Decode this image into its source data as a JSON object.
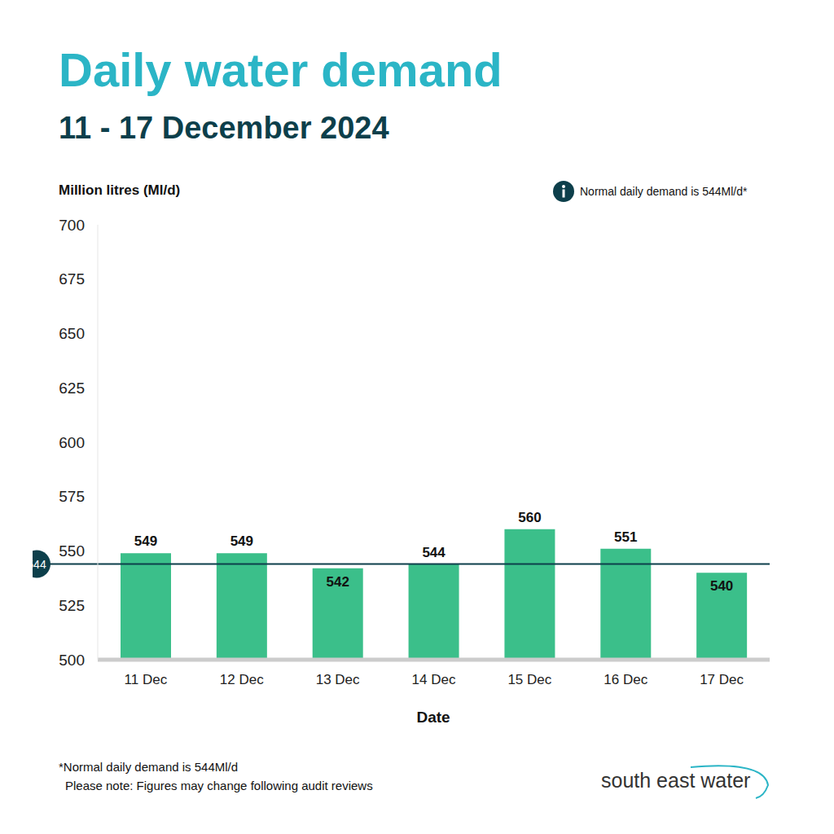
{
  "chart_data": {
    "type": "bar",
    "title": "Daily water demand",
    "subtitle": "11 - 17 December 2024",
    "y_label": "Million litres (Ml/d)",
    "x_label": "Date",
    "note": "Normal daily demand is 544Ml/d*",
    "footnotes": [
      "*Normal daily demand is 544Ml/d",
      "Please note: Figures may change following audit reviews"
    ],
    "source": "south east water",
    "categories": [
      "11 Dec",
      "12 Dec",
      "13 Dec",
      "14 Dec",
      "15 Dec",
      "16 Dec",
      "17 Dec"
    ],
    "values": [
      549,
      549,
      542,
      544,
      560,
      551,
      540
    ],
    "color": "#3bbf8a",
    "ylim": [
      500,
      700
    ],
    "yticks": [
      500,
      525,
      550,
      575,
      600,
      625,
      650,
      675,
      700
    ],
    "grid": false,
    "data_labels": true,
    "reference_line": 544
  }
}
